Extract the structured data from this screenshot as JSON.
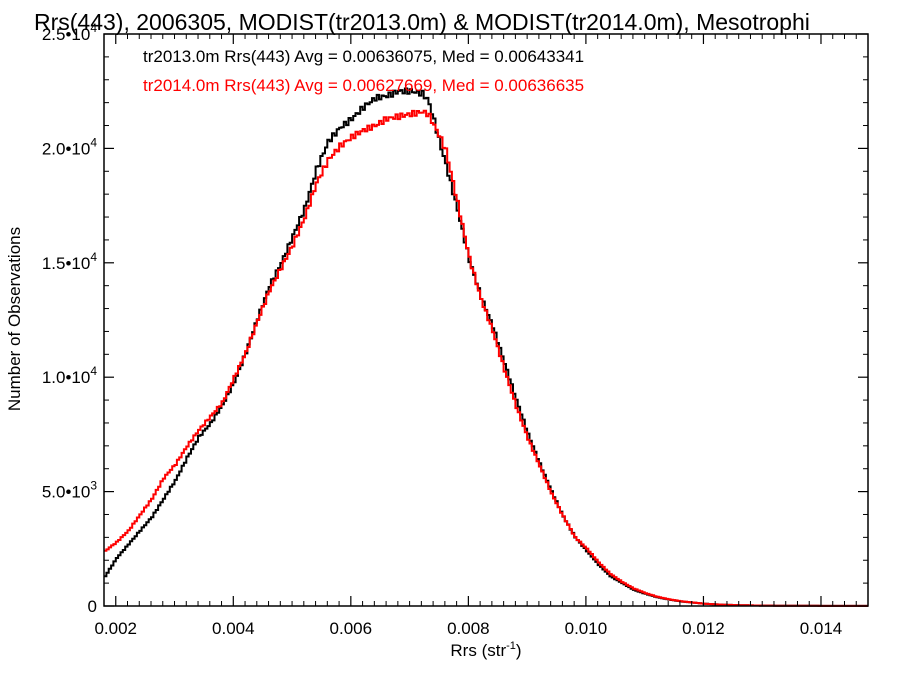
{
  "chart_data": {
    "type": "line",
    "title": "Rrs(443), 2006305, MODIST(tr2013.0m) & MODIST(tr2014.0m), Mesotrophi",
    "xlabel": "Rrs (str",
    "xlabel_sup": "-1",
    "xlabel_suffix": ")",
    "ylabel": "Number of Observations",
    "xlim": [
      0.0018,
      0.0148
    ],
    "ylim": [
      0,
      25000
    ],
    "x_ticks": [
      0.002,
      0.004,
      0.006,
      0.008,
      0.01,
      0.012,
      0.014
    ],
    "x_tick_labels": [
      "0.002",
      "0.004",
      "0.006",
      "0.008",
      "0.010",
      "0.012",
      "0.014"
    ],
    "y_ticks": [
      {
        "value": 0,
        "mant": "0",
        "exp": ""
      },
      {
        "value": 5000,
        "mant": "5.0•10",
        "exp": "3"
      },
      {
        "value": 10000,
        "mant": "1.0•10",
        "exp": "4"
      },
      {
        "value": 15000,
        "mant": "1.5•10",
        "exp": "4"
      },
      {
        "value": 20000,
        "mant": "2.0•10",
        "exp": "4"
      },
      {
        "value": 25000,
        "mant": "2.5•10",
        "exp": "4"
      }
    ],
    "legend_placement": "top-left",
    "grid": false,
    "series": [
      {
        "name": "tr2013.0m Rrs(443) Avg = 0.00636075, Med = 0.00643341",
        "color": "#000000",
        "x": [
          0.0018,
          0.002,
          0.0022,
          0.0024,
          0.0026,
          0.0028,
          0.003,
          0.0032,
          0.0034,
          0.0036,
          0.0038,
          0.004,
          0.0042,
          0.0044,
          0.0046,
          0.0048,
          0.005,
          0.0052,
          0.0054,
          0.0056,
          0.0058,
          0.006,
          0.0062,
          0.0064,
          0.0066,
          0.0068,
          0.007,
          0.0072,
          0.0073,
          0.0074,
          0.0075,
          0.0076,
          0.0078,
          0.008,
          0.0082,
          0.0084,
          0.0086,
          0.0088,
          0.009,
          0.0092,
          0.0094,
          0.0096,
          0.0098,
          0.01,
          0.0102,
          0.0104,
          0.0106,
          0.0108,
          0.011,
          0.0112,
          0.0114,
          0.0116,
          0.0118,
          0.012,
          0.0122,
          0.0124,
          0.0126,
          0.0128,
          0.013,
          0.0135,
          0.014,
          0.0148
        ],
        "y": [
          1300,
          2100,
          2700,
          3300,
          3900,
          4700,
          5500,
          6500,
          7400,
          8000,
          8800,
          9800,
          11100,
          12600,
          14000,
          15000,
          16200,
          17400,
          19100,
          20300,
          20900,
          21300,
          21800,
          22200,
          22300,
          22500,
          22500,
          22400,
          22100,
          21200,
          20200,
          19300,
          17300,
          15100,
          13500,
          12200,
          10600,
          9000,
          7500,
          6200,
          5000,
          3900,
          3000,
          2400,
          1800,
          1300,
          1000,
          700,
          530,
          380,
          280,
          200,
          150,
          100,
          70,
          50,
          35,
          25,
          18,
          10,
          6,
          3
        ]
      },
      {
        "name": "tr2014.0m Rrs(443) Avg = 0.00627669, Med = 0.00636635",
        "color": "#ff0000",
        "x": [
          0.0018,
          0.002,
          0.0022,
          0.0024,
          0.0026,
          0.0028,
          0.003,
          0.0032,
          0.0034,
          0.0036,
          0.0038,
          0.004,
          0.0042,
          0.0044,
          0.0046,
          0.0048,
          0.005,
          0.0052,
          0.0054,
          0.0056,
          0.0058,
          0.006,
          0.0062,
          0.0064,
          0.0066,
          0.0068,
          0.007,
          0.0072,
          0.0073,
          0.0074,
          0.0075,
          0.0076,
          0.0078,
          0.008,
          0.0082,
          0.0084,
          0.0086,
          0.0088,
          0.009,
          0.0092,
          0.0094,
          0.0096,
          0.0098,
          0.01,
          0.0102,
          0.0104,
          0.0106,
          0.0108,
          0.011,
          0.0112,
          0.0114,
          0.0116,
          0.0118,
          0.012,
          0.0122,
          0.0124,
          0.0126,
          0.0128,
          0.013,
          0.0135,
          0.014,
          0.0148
        ],
        "y": [
          2400,
          2800,
          3300,
          4000,
          4700,
          5600,
          6200,
          7000,
          7700,
          8300,
          8900,
          10000,
          11100,
          12500,
          13800,
          14800,
          15800,
          17000,
          18500,
          19500,
          20100,
          20500,
          20800,
          21000,
          21300,
          21400,
          21500,
          21600,
          21500,
          21000,
          20500,
          19900,
          17600,
          15200,
          13400,
          12000,
          10300,
          8700,
          7300,
          6100,
          4900,
          3900,
          3000,
          2500,
          1900,
          1400,
          1050,
          760,
          560,
          400,
          290,
          210,
          150,
          100,
          70,
          50,
          35,
          25,
          18,
          10,
          6,
          3
        ]
      }
    ]
  }
}
